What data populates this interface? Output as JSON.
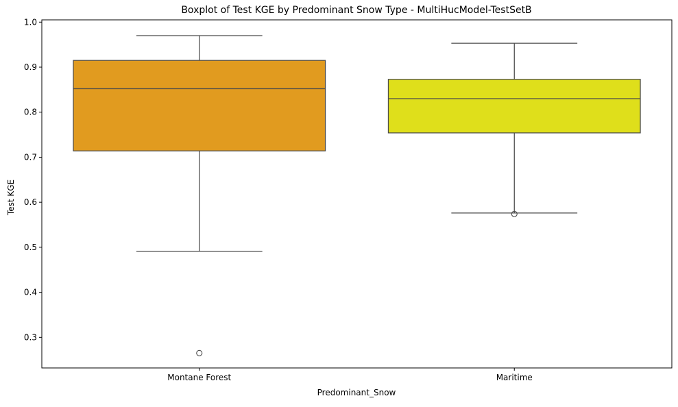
{
  "chart_data": {
    "type": "box",
    "title": "Boxplot of Test KGE by Predominant Snow Type - MultiHucModel-TestSetB",
    "xlabel": "Predominant_Snow",
    "ylabel": "Test KGE",
    "ylim": [
      0.232,
      1.005
    ],
    "yticks": [
      "0.3",
      "0.4",
      "0.5",
      "0.6",
      "0.7",
      "0.8",
      "0.9",
      "1.0"
    ],
    "grid": false,
    "categories": [
      "Montane Forest",
      "Maritime"
    ],
    "boxes": [
      {
        "category": "Montane Forest",
        "whisker_low": 0.491,
        "q1": 0.714,
        "median": 0.852,
        "q3": 0.915,
        "whisker_high": 0.97,
        "outliers": [
          0.265
        ],
        "color": "#e19b1f"
      },
      {
        "category": "Maritime",
        "whisker_low": 0.576,
        "q1": 0.754,
        "median": 0.83,
        "q3": 0.873,
        "whisker_high": 0.953,
        "outliers": [
          0.574
        ],
        "color": "#dfdf1b"
      }
    ]
  }
}
